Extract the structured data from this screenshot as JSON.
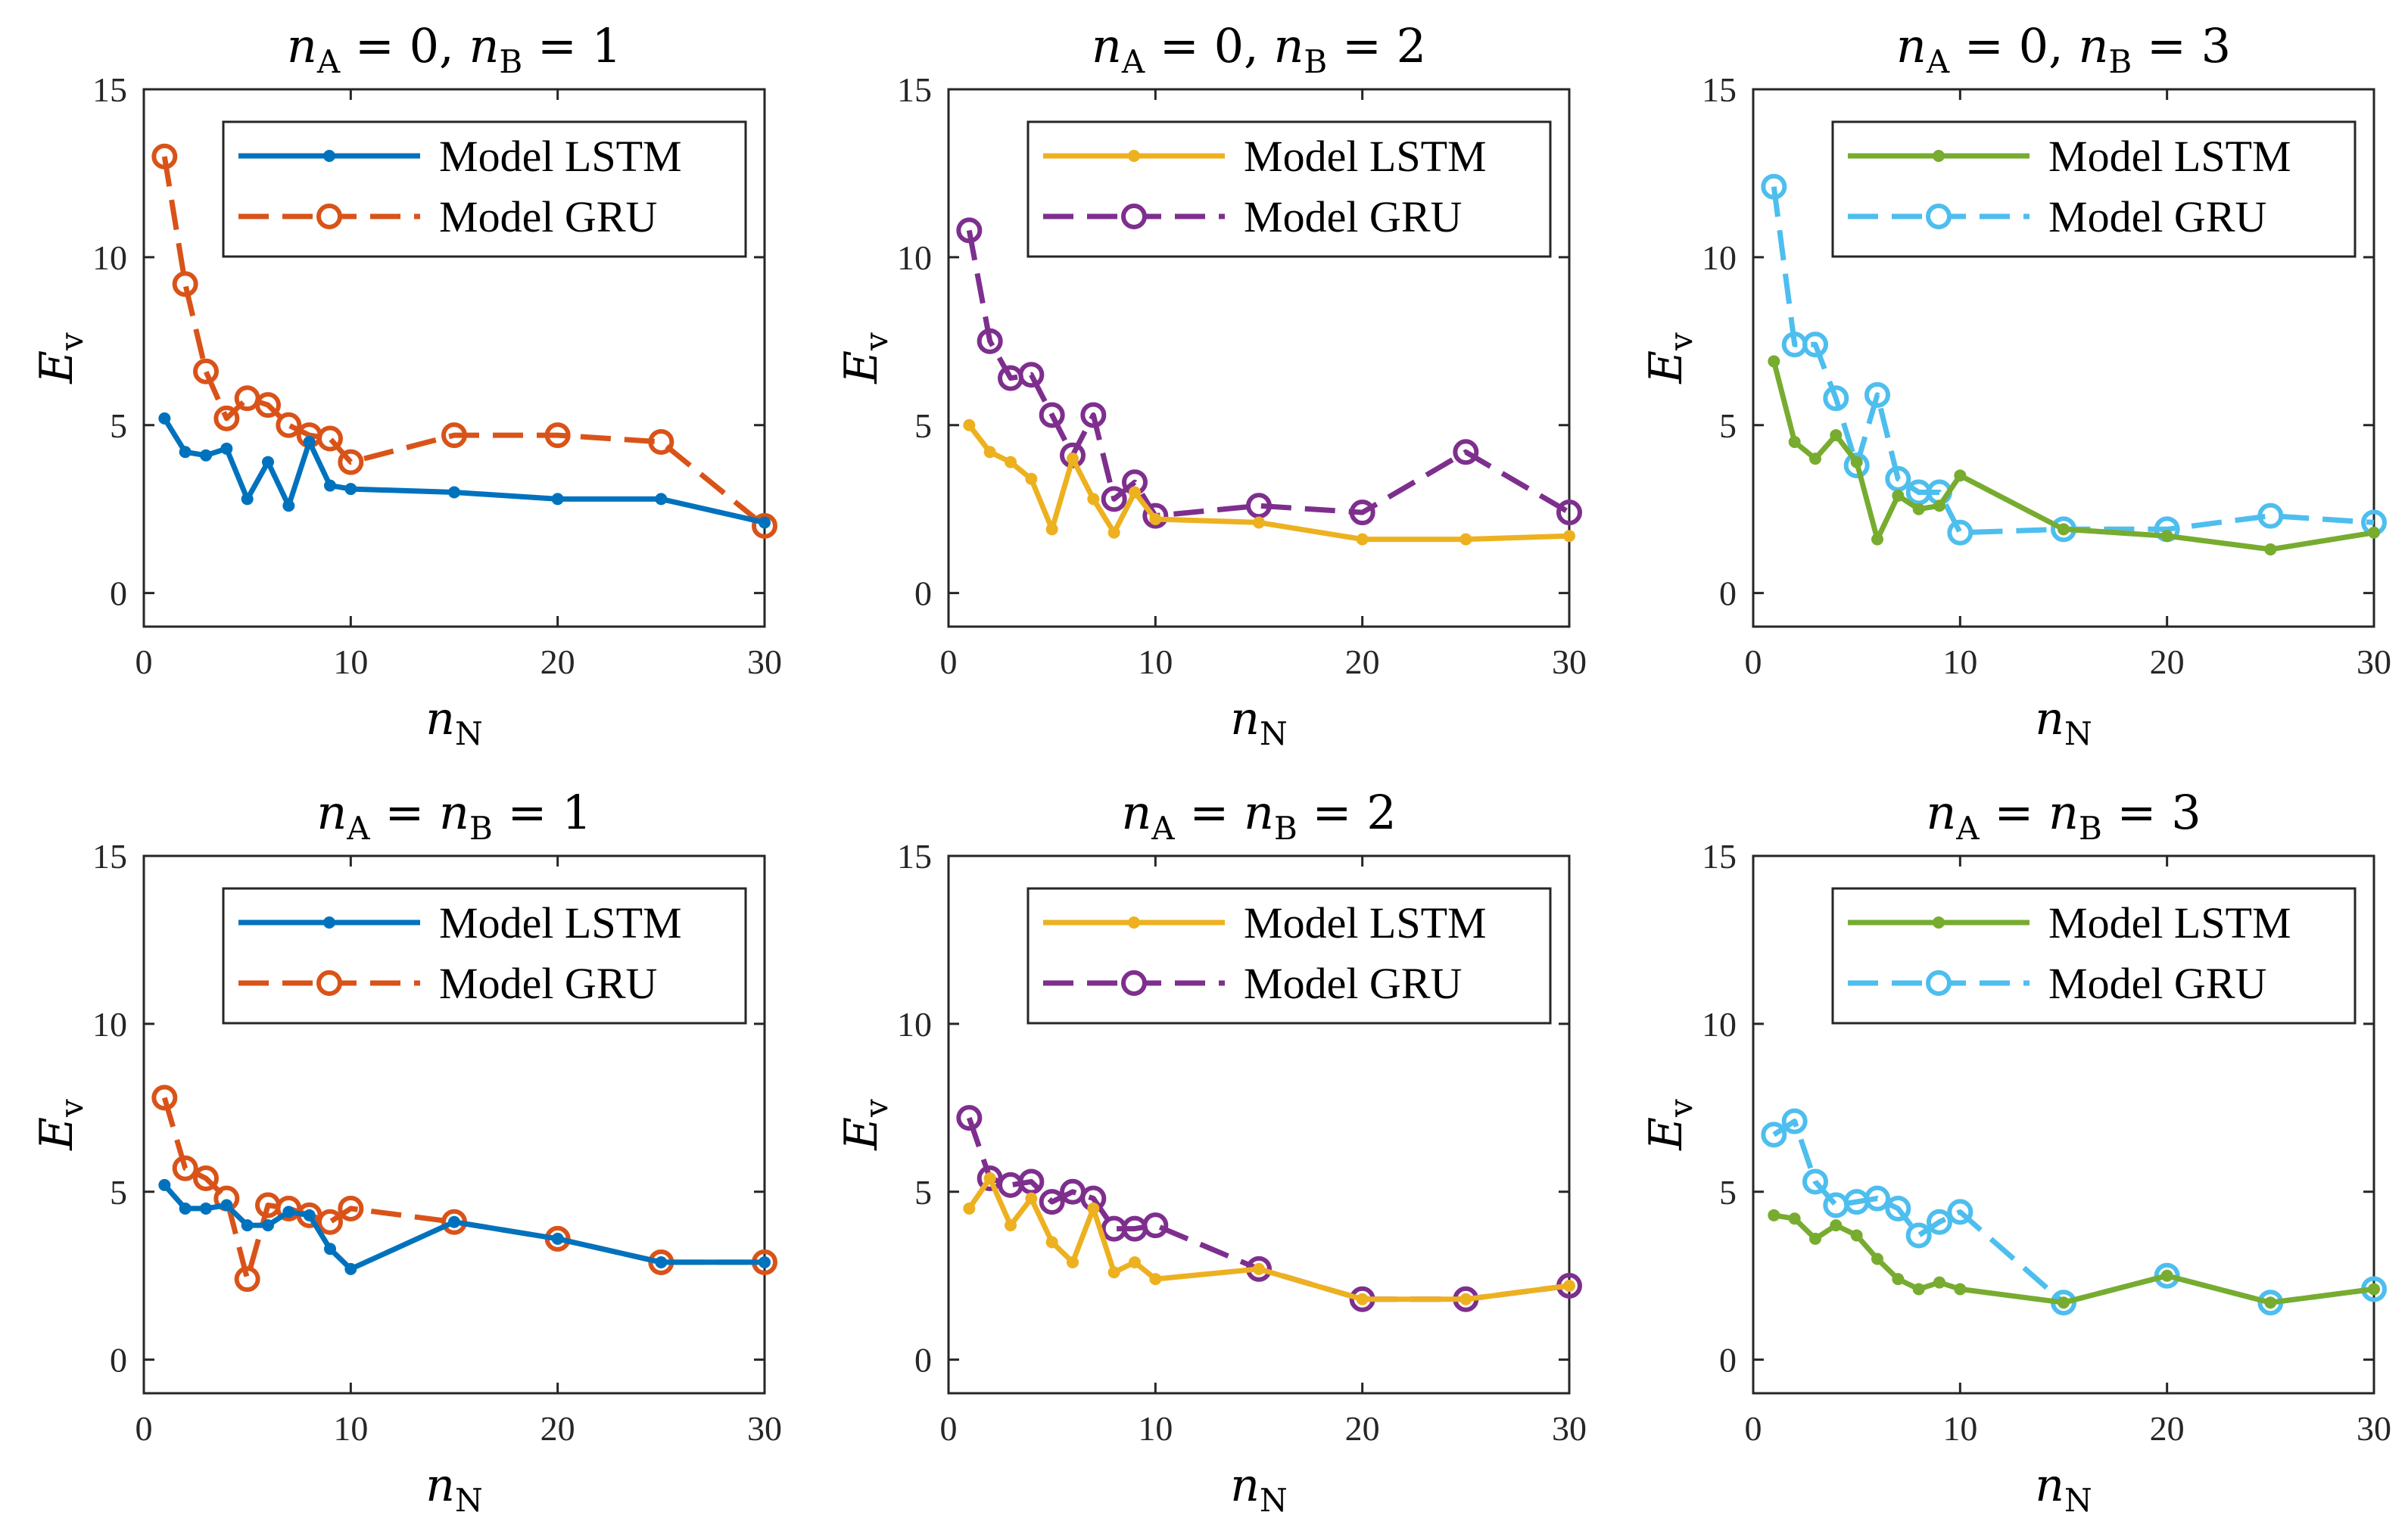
{
  "chart_data": [
    {
      "type": "line",
      "title": "n_A = 0, n_B = 1",
      "title_parts": [
        "n",
        "A",
        " = 0,  ",
        "n",
        "B",
        " = 1"
      ],
      "xlabel": [
        "n",
        "N"
      ],
      "ylabel": [
        "E",
        "v"
      ],
      "xlim": [
        0,
        30
      ],
      "ylim": [
        -1,
        15
      ],
      "xticks": [
        0,
        10,
        20,
        30
      ],
      "yticks": [
        0,
        5,
        10,
        15
      ],
      "legend": "top-right",
      "series": [
        {
          "name": "Model LSTM",
          "color": "#0072BD",
          "style": "solid",
          "marker": "dot",
          "x": [
            1,
            2,
            3,
            4,
            5,
            6,
            7,
            8,
            9,
            10,
            15,
            20,
            25,
            30
          ],
          "y": [
            5.2,
            4.2,
            4.1,
            4.3,
            2.8,
            3.9,
            2.6,
            4.5,
            3.2,
            3.1,
            3.0,
            2.8,
            2.8,
            2.1
          ]
        },
        {
          "name": "Model GRU",
          "color": "#D95319",
          "style": "dashed",
          "marker": "circle",
          "x": [
            1,
            2,
            3,
            4,
            5,
            6,
            7,
            8,
            9,
            10,
            15,
            20,
            25,
            30
          ],
          "y": [
            13.0,
            9.2,
            6.6,
            5.2,
            5.8,
            5.6,
            5.0,
            4.7,
            4.6,
            3.9,
            4.7,
            4.7,
            4.5,
            2.0
          ]
        }
      ]
    },
    {
      "type": "line",
      "title": "n_A = 0, n_B = 2",
      "title_parts": [
        "n",
        "A",
        " = 0,  ",
        "n",
        "B",
        " = 2"
      ],
      "xlabel": [
        "n",
        "N"
      ],
      "ylabel": [
        "E",
        "v"
      ],
      "xlim": [
        0,
        30
      ],
      "ylim": [
        -1,
        15
      ],
      "xticks": [
        0,
        10,
        20,
        30
      ],
      "yticks": [
        0,
        5,
        10,
        15
      ],
      "legend": "top-right",
      "series": [
        {
          "name": "Model LSTM",
          "color": "#EDB120",
          "style": "solid",
          "marker": "dot",
          "x": [
            1,
            2,
            3,
            4,
            5,
            6,
            7,
            8,
            9,
            10,
            15,
            20,
            25,
            30
          ],
          "y": [
            5.0,
            4.2,
            3.9,
            3.4,
            1.9,
            4.0,
            2.8,
            1.8,
            3.0,
            2.2,
            2.1,
            1.6,
            1.6,
            1.7
          ]
        },
        {
          "name": "Model GRU",
          "color": "#7E2F8E",
          "style": "dashed",
          "marker": "circle",
          "x": [
            1,
            2,
            3,
            4,
            5,
            6,
            7,
            8,
            9,
            10,
            15,
            20,
            25,
            30
          ],
          "y": [
            10.8,
            7.5,
            6.4,
            6.5,
            5.3,
            4.1,
            5.3,
            2.8,
            3.3,
            2.3,
            2.6,
            2.4,
            4.2,
            2.4
          ]
        }
      ]
    },
    {
      "type": "line",
      "title": "n_A = 0, n_B = 3",
      "title_parts": [
        "n",
        "A",
        " = 0,  ",
        "n",
        "B",
        " = 3"
      ],
      "xlabel": [
        "n",
        "N"
      ],
      "ylabel": [
        "E",
        "v"
      ],
      "xlim": [
        0,
        30
      ],
      "ylim": [
        -1,
        15
      ],
      "xticks": [
        0,
        10,
        20,
        30
      ],
      "yticks": [
        0,
        5,
        10,
        15
      ],
      "legend": "top-right",
      "series": [
        {
          "name": "Model LSTM",
          "color": "#77AC30",
          "style": "solid",
          "marker": "dot",
          "x": [
            1,
            2,
            3,
            4,
            5,
            6,
            7,
            8,
            9,
            10,
            15,
            20,
            25,
            30
          ],
          "y": [
            6.9,
            4.5,
            4.0,
            4.7,
            3.9,
            1.6,
            2.9,
            2.5,
            2.6,
            3.5,
            1.9,
            1.7,
            1.3,
            1.8
          ]
        },
        {
          "name": "Model GRU",
          "color": "#4DBEEE",
          "style": "dashed",
          "marker": "circle",
          "x": [
            1,
            2,
            3,
            4,
            5,
            6,
            7,
            8,
            9,
            10,
            15,
            20,
            25,
            30
          ],
          "y": [
            12.1,
            7.4,
            7.4,
            5.8,
            3.8,
            5.9,
            3.4,
            3.0,
            3.0,
            1.8,
            1.9,
            1.9,
            2.3,
            2.1
          ]
        }
      ]
    },
    {
      "type": "line",
      "title": "n_A = n_B = 1",
      "title_parts": [
        "n",
        "A",
        " = ",
        "n",
        "B",
        " = 1"
      ],
      "xlabel": [
        "n",
        "N"
      ],
      "ylabel": [
        "E",
        "v"
      ],
      "xlim": [
        0,
        30
      ],
      "ylim": [
        -1,
        15
      ],
      "xticks": [
        0,
        10,
        20,
        30
      ],
      "yticks": [
        0,
        5,
        10,
        15
      ],
      "legend": "top-right",
      "series": [
        {
          "name": "Model LSTM",
          "color": "#0072BD",
          "style": "solid",
          "marker": "dot",
          "x": [
            1,
            2,
            3,
            4,
            5,
            6,
            7,
            8,
            9,
            10,
            15,
            20,
            25,
            30
          ],
          "y": [
            5.2,
            4.5,
            4.5,
            4.6,
            4.0,
            4.0,
            4.4,
            4.3,
            3.3,
            2.7,
            4.1,
            3.6,
            2.9,
            2.9
          ]
        },
        {
          "name": "Model GRU",
          "color": "#D95319",
          "style": "dashed",
          "marker": "circle",
          "x": [
            1,
            2,
            3,
            4,
            5,
            6,
            7,
            8,
            9,
            10,
            15,
            20,
            25,
            30
          ],
          "y": [
            7.8,
            5.7,
            5.4,
            4.8,
            2.4,
            4.6,
            4.5,
            4.3,
            4.1,
            4.5,
            4.1,
            3.6,
            2.9,
            2.9
          ]
        }
      ]
    },
    {
      "type": "line",
      "title": "n_A = n_B = 2",
      "title_parts": [
        "n",
        "A",
        " = ",
        "n",
        "B",
        " = 2"
      ],
      "xlabel": [
        "n",
        "N"
      ],
      "ylabel": [
        "E",
        "v"
      ],
      "xlim": [
        0,
        30
      ],
      "ylim": [
        -1,
        15
      ],
      "xticks": [
        0,
        10,
        20,
        30
      ],
      "yticks": [
        0,
        5,
        10,
        15
      ],
      "legend": "top-right",
      "series": [
        {
          "name": "Model LSTM",
          "color": "#EDB120",
          "style": "solid",
          "marker": "dot",
          "x": [
            1,
            2,
            3,
            4,
            5,
            6,
            7,
            8,
            9,
            10,
            15,
            20,
            25,
            30
          ],
          "y": [
            4.5,
            5.4,
            4.0,
            4.8,
            3.5,
            2.9,
            4.5,
            2.6,
            2.9,
            2.4,
            2.7,
            1.8,
            1.8,
            2.2
          ]
        },
        {
          "name": "Model GRU",
          "color": "#7E2F8E",
          "style": "dashed",
          "marker": "circle",
          "x": [
            1,
            2,
            3,
            4,
            5,
            6,
            7,
            8,
            9,
            10,
            15,
            20,
            25,
            30
          ],
          "y": [
            7.2,
            5.4,
            5.2,
            5.3,
            4.7,
            5.0,
            4.8,
            3.9,
            3.9,
            4.0,
            2.7,
            1.8,
            1.8,
            2.2
          ]
        }
      ]
    },
    {
      "type": "line",
      "title": "n_A = n_B = 3",
      "title_parts": [
        "n",
        "A",
        " = ",
        "n",
        "B",
        " = 3"
      ],
      "xlabel": [
        "n",
        "N"
      ],
      "ylabel": [
        "E",
        "v"
      ],
      "xlim": [
        0,
        30
      ],
      "ylim": [
        -1,
        15
      ],
      "xticks": [
        0,
        10,
        20,
        30
      ],
      "yticks": [
        0,
        5,
        10,
        15
      ],
      "legend": "top-right",
      "series": [
        {
          "name": "Model LSTM",
          "color": "#77AC30",
          "style": "solid",
          "marker": "dot",
          "x": [
            1,
            2,
            3,
            4,
            5,
            6,
            7,
            8,
            9,
            10,
            15,
            20,
            25,
            30
          ],
          "y": [
            4.3,
            4.2,
            3.6,
            4.0,
            3.7,
            3.0,
            2.4,
            2.1,
            2.3,
            2.1,
            1.7,
            2.5,
            1.7,
            2.1
          ]
        },
        {
          "name": "Model GRU",
          "color": "#4DBEEE",
          "style": "dashed",
          "marker": "circle",
          "x": [
            1,
            2,
            3,
            4,
            5,
            6,
            7,
            8,
            9,
            10,
            15,
            20,
            25,
            30
          ],
          "y": [
            6.7,
            7.1,
            5.3,
            4.6,
            4.7,
            4.8,
            4.5,
            3.7,
            4.1,
            4.4,
            1.7,
            2.5,
            1.7,
            2.1
          ]
        }
      ]
    }
  ]
}
